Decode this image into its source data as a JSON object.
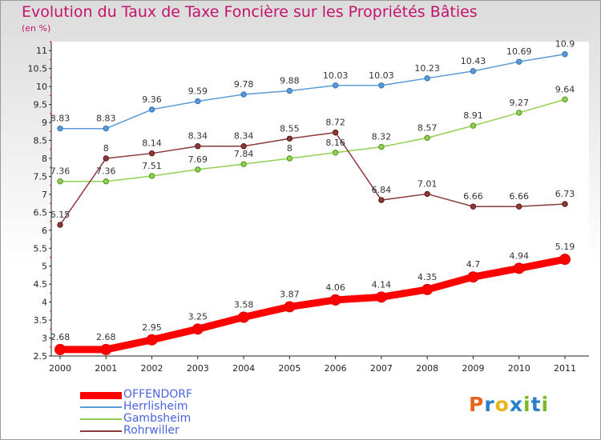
{
  "title": "Evolution du Taux de Taxe Foncière sur les Propriétés Bâties",
  "subtitle": "(en %)",
  "logo": {
    "text": "Proxiti",
    "letters": [
      "P",
      "r",
      "o",
      "x",
      "i",
      "t",
      "i"
    ],
    "colors": [
      "#e8641b",
      "#2a7fc9",
      "#e8b51b",
      "#2a7fc9",
      "#7ab828",
      "#2a7fc9",
      "#7ab828"
    ]
  },
  "chart_data": {
    "type": "line",
    "title": "Evolution du Taux de Taxe Foncière sur les Propriétés Bâties",
    "ylabel": "(en %)",
    "x": [
      "2000",
      "2001",
      "2002",
      "2003",
      "2004",
      "2005",
      "2006",
      "2007",
      "2008",
      "2009",
      "2010",
      "2011"
    ],
    "ylim": [
      2.5,
      11.25
    ],
    "yticks": [
      "2.5",
      "3",
      "3.5",
      "4",
      "4.5",
      "5",
      "5.5",
      "6",
      "6.5",
      "7",
      "7.5",
      "8",
      "8.5",
      "9",
      "9.5",
      "10",
      "10.5",
      "11"
    ],
    "grid": false,
    "legend_position": "bottom-left",
    "series": [
      {
        "name": "OFFENDORF",
        "color": "#ff0000",
        "values": [
          2.68,
          2.68,
          2.95,
          3.25,
          3.58,
          3.87,
          4.06,
          4.14,
          4.35,
          4.7,
          4.94,
          5.19
        ],
        "labels": [
          "2.68",
          "2.68",
          "2.95",
          "3.25",
          "3.58",
          "3.87",
          "4.06",
          "4.14",
          "4.35",
          "4.7",
          "4.94",
          "5.19"
        ]
      },
      {
        "name": "Herrlisheim",
        "color": "#5b9bd5",
        "values": [
          8.83,
          8.83,
          9.36,
          9.59,
          9.78,
          9.88,
          10.03,
          10.03,
          10.23,
          10.43,
          10.69,
          10.9
        ],
        "labels": [
          "8.83",
          "8.83",
          "9.36",
          "9.59",
          "9.78",
          "9.88",
          "10.03",
          "10.03",
          "10.23",
          "10.43",
          "10.69",
          "10.9"
        ]
      },
      {
        "name": "Gambsheim",
        "color": "#92d050",
        "values": [
          7.36,
          7.36,
          7.51,
          7.69,
          7.84,
          8,
          8.16,
          8.32,
          8.57,
          8.91,
          9.27,
          9.64
        ],
        "labels": [
          "7.36",
          "7.36",
          "7.51",
          "7.69",
          "7.84",
          "8",
          "8.16",
          "8.32",
          "8.57",
          "8.91",
          "9.27",
          "9.64"
        ]
      },
      {
        "name": "Rohrwiller",
        "color": "#8b3a3a",
        "values": [
          6.15,
          8,
          8.14,
          8.34,
          8.34,
          8.55,
          8.72,
          6.84,
          7.01,
          6.66,
          6.66,
          6.73
        ],
        "labels": [
          "6.15",
          "8",
          "8.14",
          "8.34",
          "8.34",
          "8.55",
          "8.72",
          "6.84",
          "7.01",
          "6.66",
          "6.66",
          "6.73"
        ]
      }
    ]
  }
}
